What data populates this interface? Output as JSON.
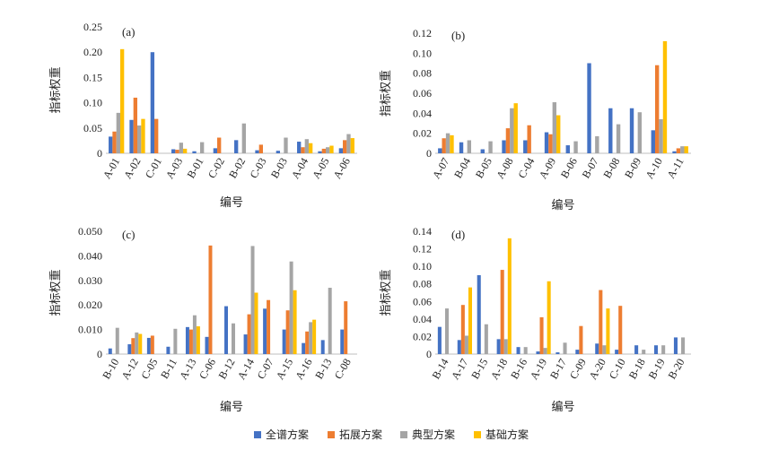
{
  "colors": {
    "全谱方案": "#4472C4",
    "拓展方案": "#ED7D31",
    "典型方案": "#A5A5A5",
    "基础方案": "#FFC000"
  },
  "legend": [
    "全谱方案",
    "拓展方案",
    "典型方案",
    "基础方案"
  ],
  "chart_data": [
    {
      "type": "bar",
      "panel_label": "(a)",
      "xlabel": "编号",
      "ylabel": "指标权重",
      "ylim": [
        0,
        0.25
      ],
      "yticks": [
        "0",
        "0.05",
        "0.10",
        "0.15",
        "0.20",
        "0.25"
      ],
      "categories": [
        "A-01",
        "A-02",
        "C-01",
        "A-03",
        "B-01",
        "C-02",
        "B-02",
        "C-03",
        "B-03",
        "A-04",
        "A-05",
        "A-06"
      ],
      "series": [
        {
          "name": "全谱方案",
          "values": [
            0.033,
            0.066,
            0.2,
            0.008,
            0.004,
            0.01,
            0.026,
            0.006,
            0.005,
            0.023,
            0.004,
            0.01
          ]
        },
        {
          "name": "拓展方案",
          "values": [
            0.043,
            0.11,
            0.068,
            0.007,
            0,
            0.031,
            0,
            0.017,
            0,
            0.012,
            0.009,
            0.026
          ]
        },
        {
          "name": "典型方案",
          "values": [
            0.08,
            0.055,
            0,
            0.021,
            0.022,
            0,
            0.059,
            0,
            0.031,
            0.028,
            0.012,
            0.038
          ]
        },
        {
          "name": "基础方案",
          "values": [
            0.206,
            0.068,
            0,
            0.009,
            0,
            0,
            0,
            0,
            0,
            0.02,
            0.015,
            0.03
          ]
        }
      ]
    },
    {
      "type": "bar",
      "panel_label": "(b)",
      "xlabel": "编号",
      "ylabel": "指标权重",
      "ylim": [
        0,
        0.12
      ],
      "yticks": [
        "0",
        "0.02",
        "0.04",
        "0.06",
        "0.08",
        "0.10",
        "0.12"
      ],
      "categories": [
        "A-07",
        "B-04",
        "B-05",
        "A-08",
        "C-04",
        "A-09",
        "B-06",
        "B-07",
        "B-08",
        "B-09",
        "A-10",
        "A-11"
      ],
      "series": [
        {
          "name": "全谱方案",
          "values": [
            0.005,
            0.011,
            0.004,
            0.013,
            0.013,
            0.021,
            0.008,
            0.09,
            0.045,
            0.045,
            0.023,
            0.002
          ]
        },
        {
          "name": "拓展方案",
          "values": [
            0.015,
            0,
            0,
            0.025,
            0.028,
            0.019,
            0,
            0,
            0,
            0,
            0.088,
            0.005
          ]
        },
        {
          "name": "典型方案",
          "values": [
            0.02,
            0.013,
            0.012,
            0.045,
            0,
            0.051,
            0.012,
            0.017,
            0.029,
            0.041,
            0.034,
            0.007
          ]
        },
        {
          "name": "基础方案",
          "values": [
            0.018,
            0,
            0,
            0.05,
            0,
            0.038,
            0,
            0,
            0,
            0,
            0.112,
            0.007
          ]
        }
      ]
    },
    {
      "type": "bar",
      "panel_label": "(c)",
      "xlabel": "编号",
      "ylabel": "指标权重",
      "ylim": [
        0,
        0.05
      ],
      "yticks": [
        "0",
        "0.010",
        "0.020",
        "0.030",
        "0.040",
        "0.050"
      ],
      "categories": [
        "B-10",
        "A-12",
        "C-05",
        "B-11",
        "A-13",
        "C-06",
        "B-12",
        "A-14",
        "C-07",
        "A-15",
        "A-16",
        "B-13",
        "C-08"
      ],
      "series": [
        {
          "name": "全谱方案",
          "values": [
            0.0023,
            0.004,
            0.0066,
            0.003,
            0.011,
            0.007,
            0.0195,
            0.008,
            0.0185,
            0.01,
            0.0045,
            0.0057,
            0.01
          ]
        },
        {
          "name": "拓展方案",
          "values": [
            0,
            0.0065,
            0.0075,
            0,
            0.01,
            0.0442,
            0,
            0.0162,
            0.022,
            0.0178,
            0.0092,
            0,
            0.0215
          ]
        },
        {
          "name": "典型方案",
          "values": [
            0.0107,
            0.0088,
            0,
            0.0103,
            0.0158,
            0,
            0.0125,
            0.044,
            0,
            0.0377,
            0.013,
            0.027,
            0
          ]
        },
        {
          "name": "基础方案",
          "values": [
            0,
            0.0082,
            0,
            0,
            0.0113,
            0,
            0,
            0.025,
            0,
            0.026,
            0.014,
            0,
            0
          ]
        }
      ]
    },
    {
      "type": "bar",
      "panel_label": "(d)",
      "xlabel": "编号",
      "ylabel": "指标权重",
      "ylim": [
        0,
        0.14
      ],
      "yticks": [
        "0",
        "0.02",
        "0.04",
        "0.06",
        "0.08",
        "0.10",
        "0.12",
        "0.14"
      ],
      "categories": [
        "B-14",
        "A-17",
        "B-15",
        "A-18",
        "B-16",
        "A-19",
        "B-17",
        "C-09",
        "A-20",
        "C-10",
        "B-18",
        "B-19",
        "B-20"
      ],
      "series": [
        {
          "name": "全谱方案",
          "values": [
            0.031,
            0.016,
            0.09,
            0.017,
            0.008,
            0.003,
            0.002,
            0.005,
            0.012,
            0.005,
            0.01,
            0.01,
            0.019
          ]
        },
        {
          "name": "拓展方案",
          "values": [
            0,
            0.056,
            0,
            0.096,
            0,
            0.042,
            0,
            0.032,
            0.073,
            0.055,
            0,
            0,
            0
          ]
        },
        {
          "name": "典型方案",
          "values": [
            0.052,
            0.021,
            0.034,
            0.017,
            0.008,
            0.007,
            0.013,
            0,
            0.01,
            0,
            0.005,
            0.01,
            0.019
          ]
        },
        {
          "name": "基础方案",
          "values": [
            0,
            0.076,
            0,
            0.132,
            0,
            0.083,
            0,
            0,
            0.052,
            0,
            0,
            0,
            0
          ]
        }
      ]
    }
  ]
}
